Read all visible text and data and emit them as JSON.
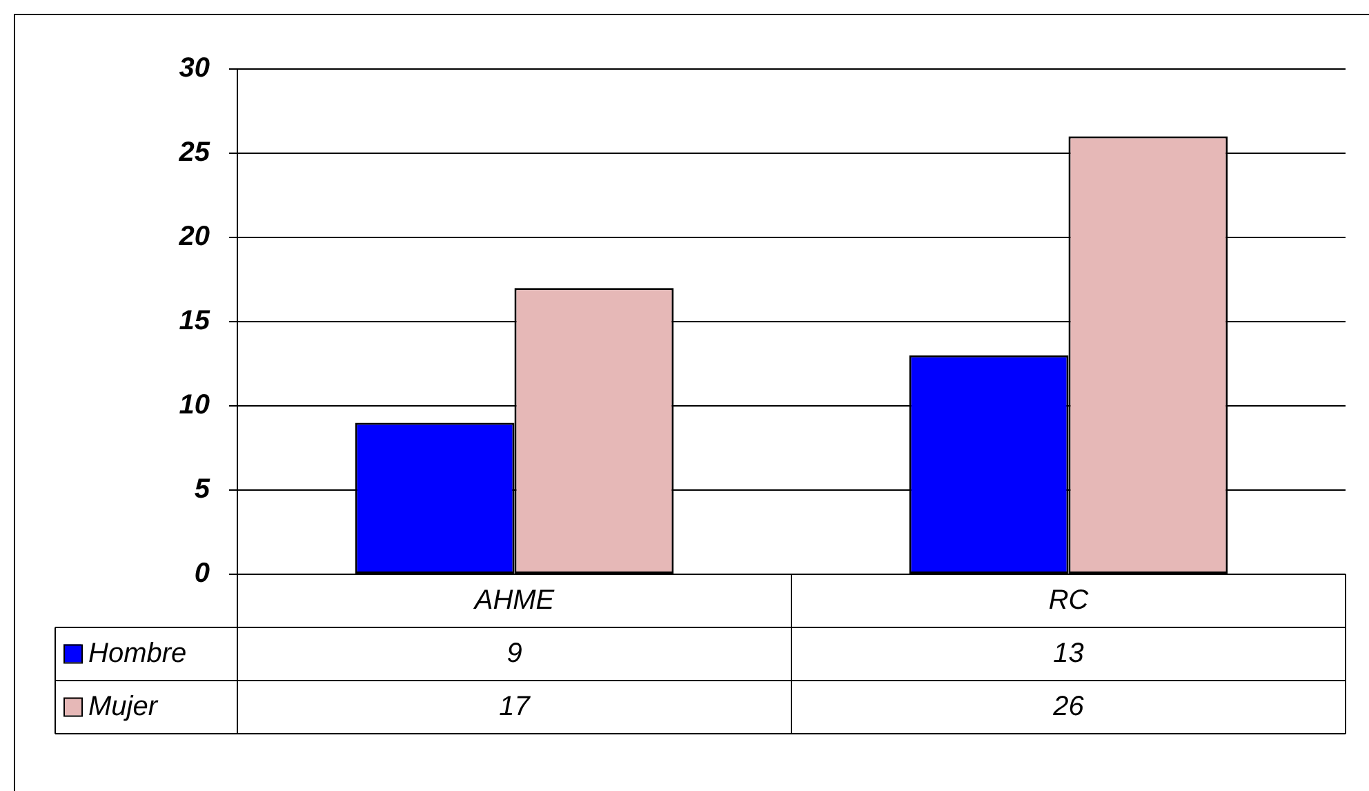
{
  "chart_data": {
    "type": "bar",
    "categories": [
      "AHME",
      "RC"
    ],
    "series": [
      {
        "name": "Hombre",
        "color": "#0000ff",
        "values": [
          9,
          13
        ]
      },
      {
        "name": "Mujer",
        "color": "#e6b8b7",
        "values": [
          17,
          26
        ]
      }
    ],
    "ylim": [
      0,
      30
    ],
    "yticks": [
      0,
      5,
      10,
      15,
      20,
      25,
      30
    ],
    "grid": "y",
    "legend": "bottom",
    "data_labels": true
  }
}
